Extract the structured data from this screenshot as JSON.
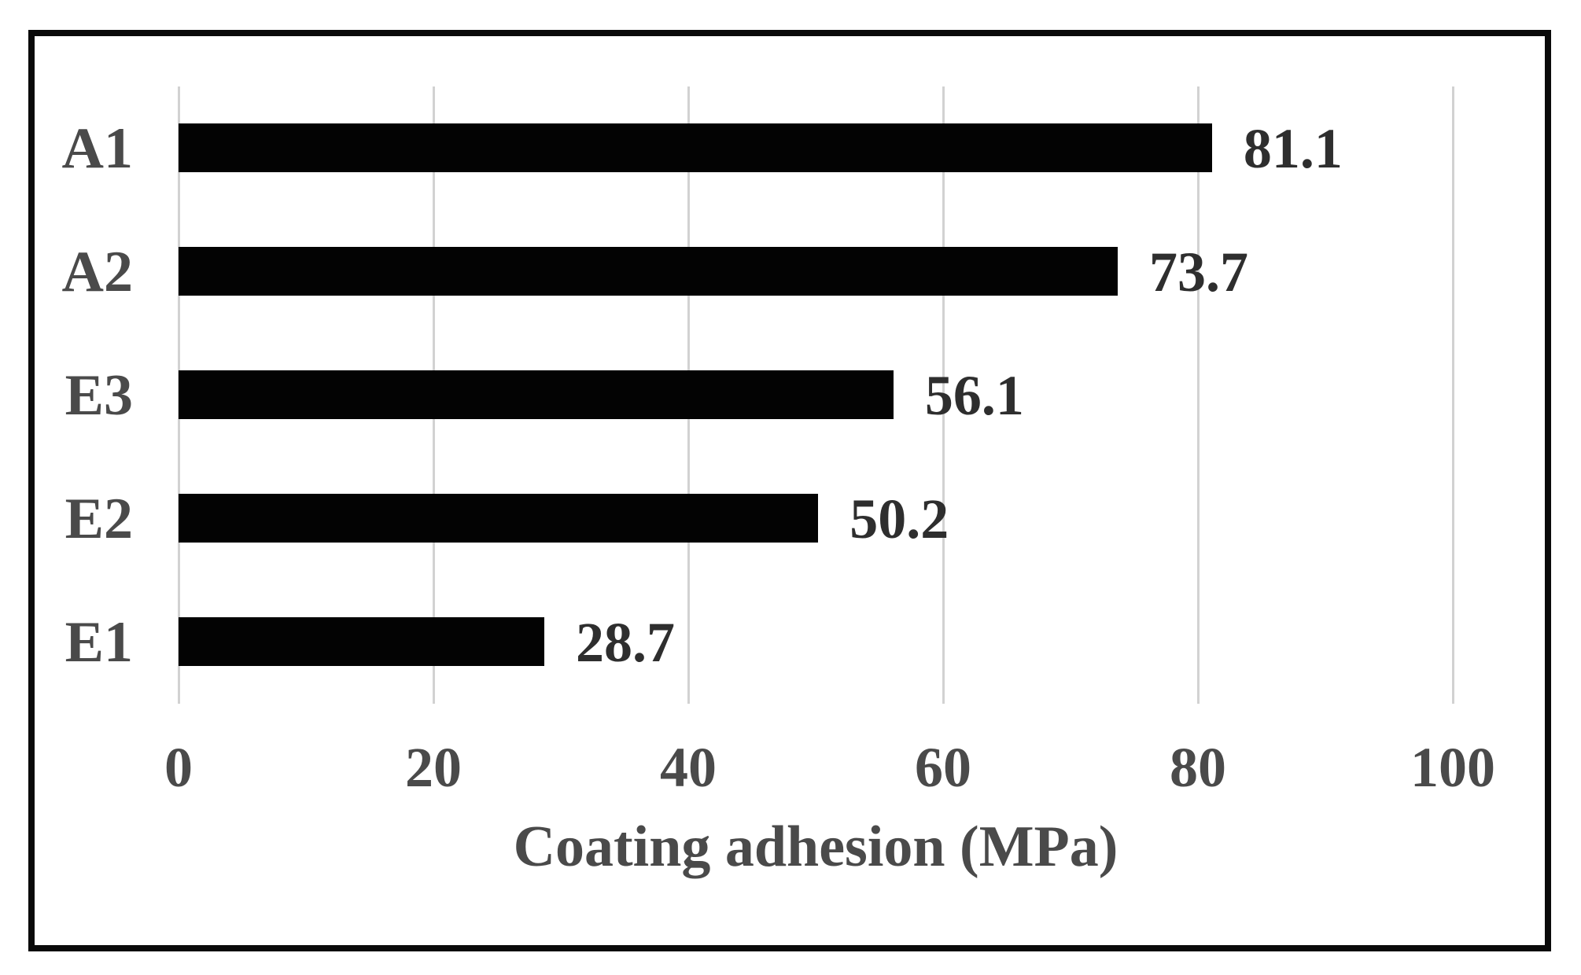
{
  "figure": {
    "background": "#ffffff",
    "border_color": "#0a0a0a"
  },
  "chart_data": {
    "type": "bar",
    "orientation": "horizontal",
    "categories": [
      "A1",
      "A2",
      "E3",
      "E2",
      "E1"
    ],
    "values": [
      81.1,
      73.7,
      56.1,
      50.2,
      28.7
    ],
    "value_labels": [
      "81.1",
      "73.7",
      "56.1",
      "50.2",
      "28.7"
    ],
    "title": "",
    "xlabel": "Coating adhesion (MPa)",
    "ylabel": "",
    "xlim": [
      0,
      100
    ],
    "xticks": [
      0,
      20,
      40,
      60,
      80,
      100
    ],
    "xtick_labels": [
      "0",
      "20",
      "40",
      "60",
      "80",
      "100"
    ],
    "grid": true,
    "legend": "none",
    "bar_color": "#030303",
    "gridline_color": "#d2d2d2",
    "category_label_color": "#4a4a4a",
    "value_label_color": "#2e2e2e"
  }
}
